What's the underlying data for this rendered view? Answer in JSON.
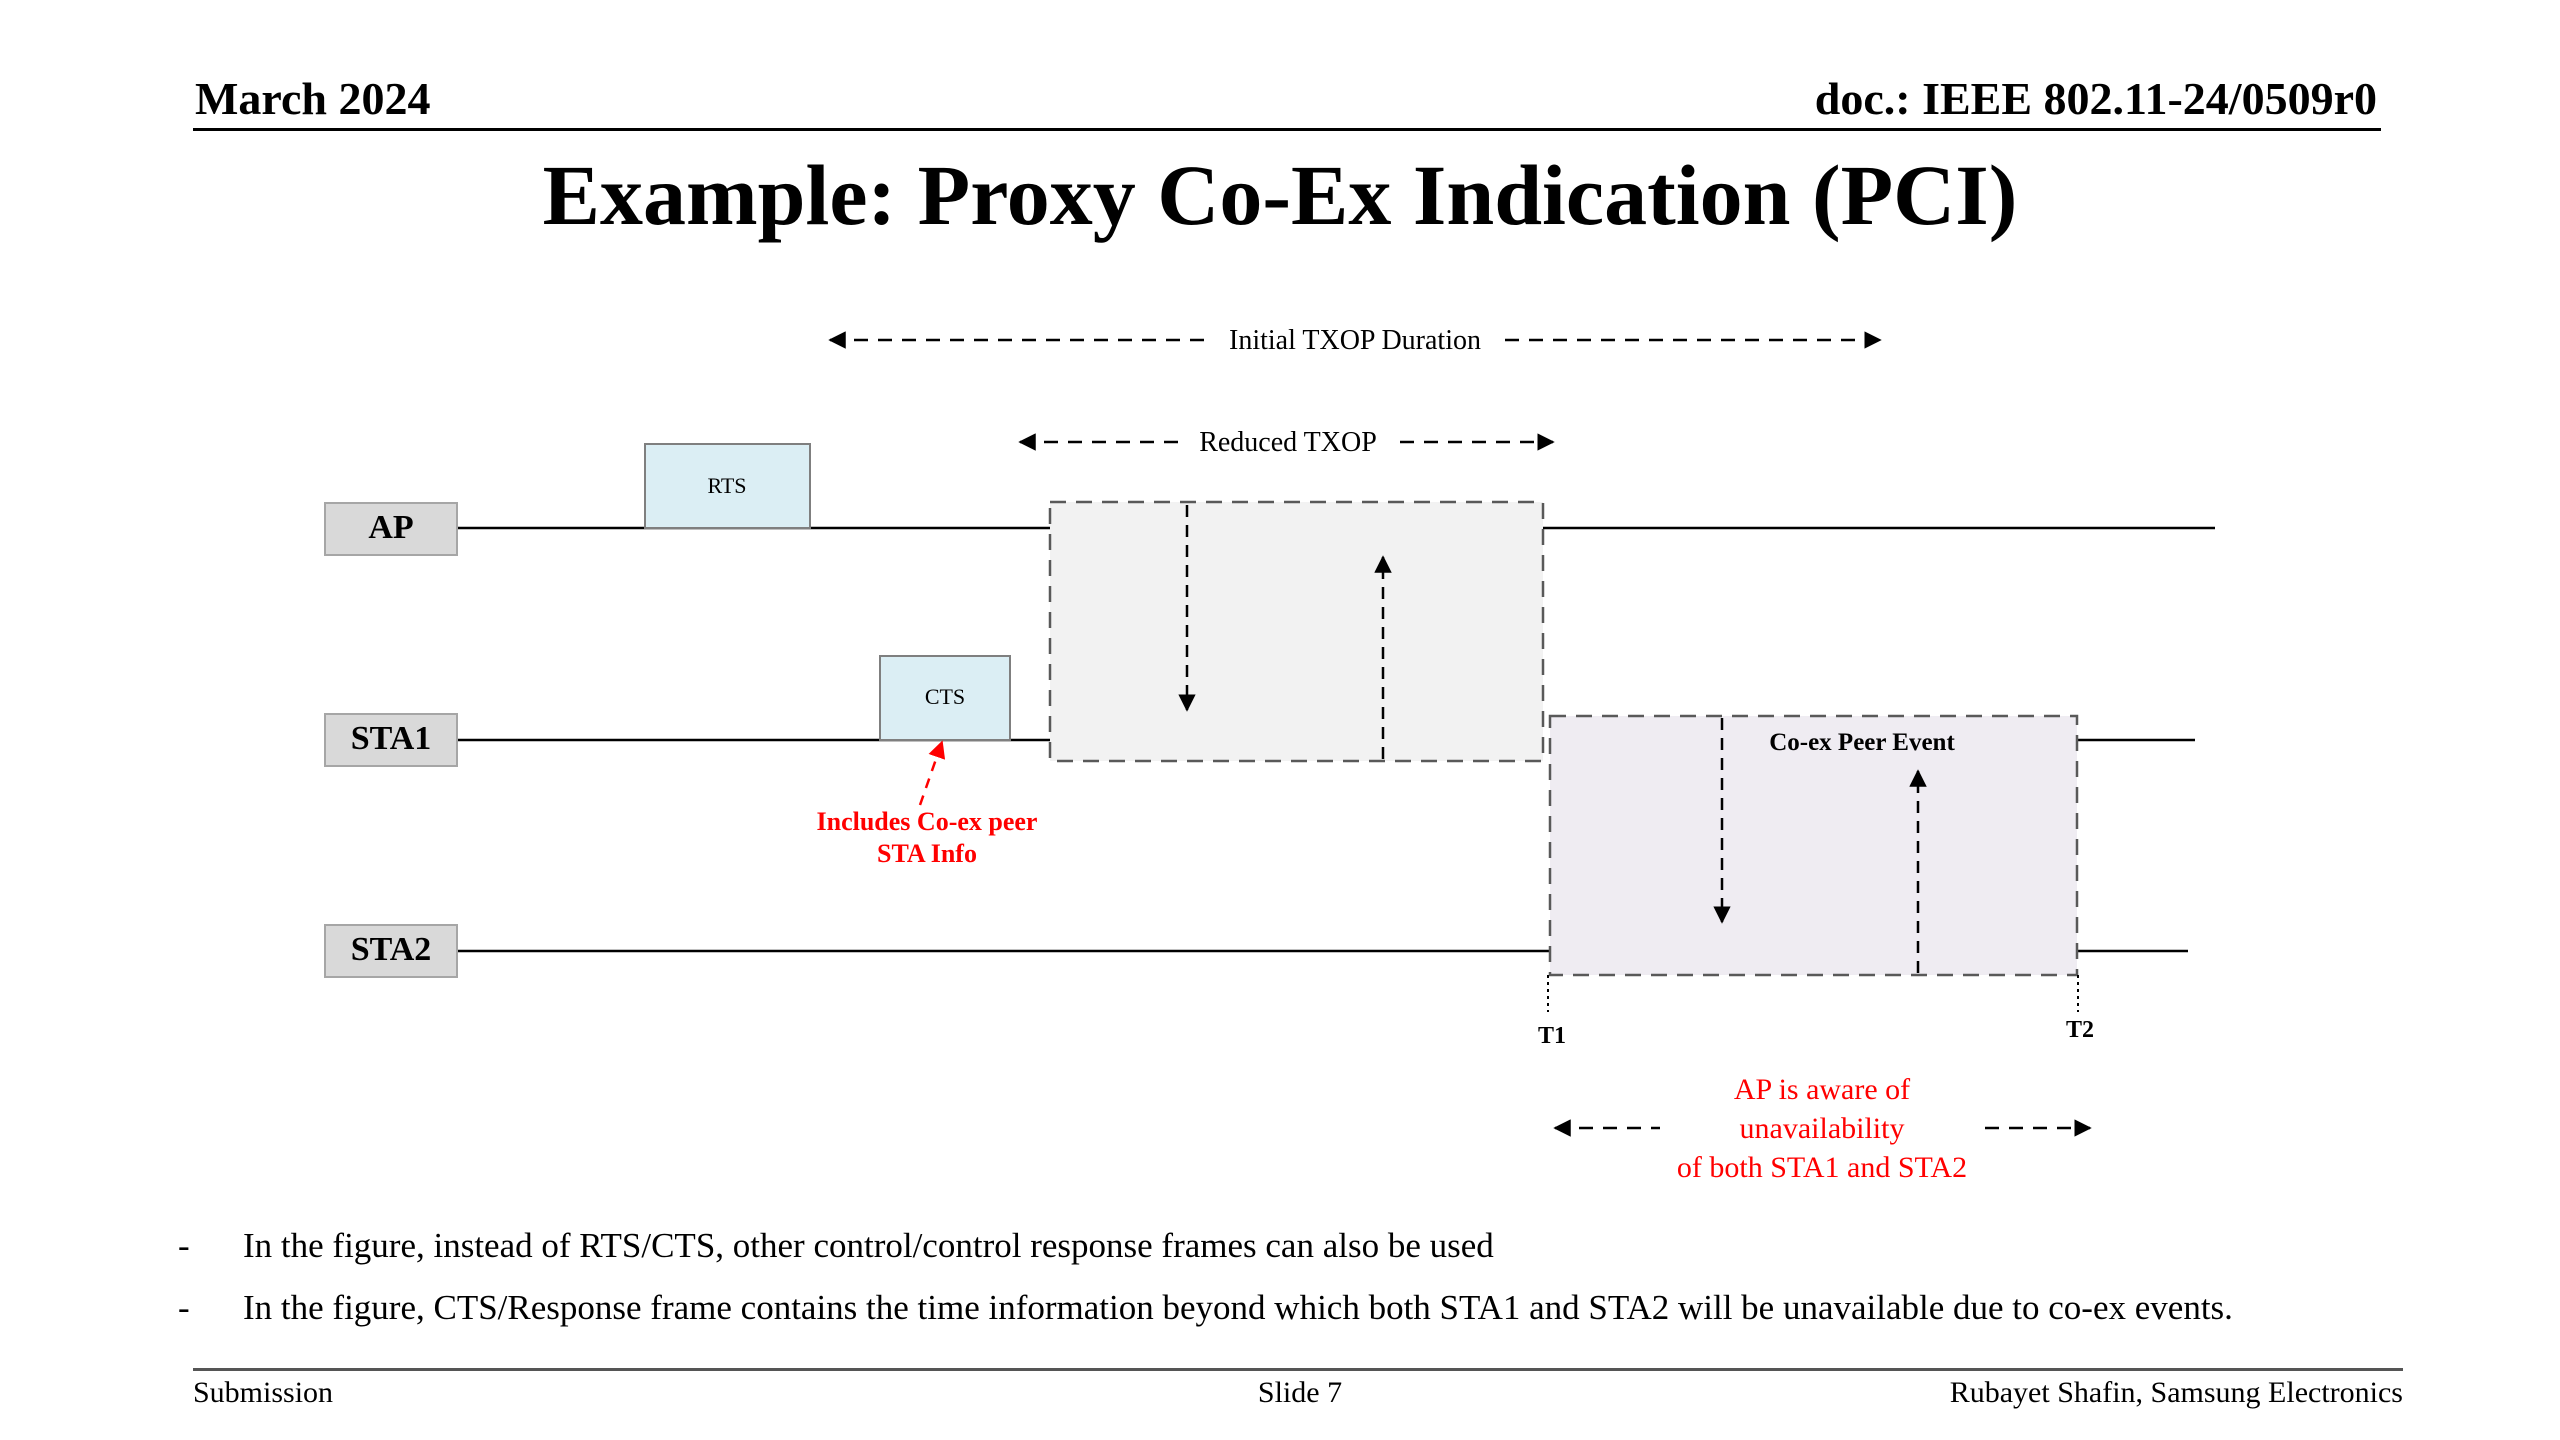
{
  "header": {
    "date": "March 2024",
    "doc": "doc.: IEEE 802.11-24/0509r0"
  },
  "title": "Example: Proxy Co-Ex Indication (PCI)",
  "diagram": {
    "stations": {
      "ap": "AP",
      "sta1": "STA1",
      "sta2": "STA2"
    },
    "frames": {
      "rts": "RTS",
      "cts": "CTS"
    },
    "durations": {
      "initial_txop": "Initial TXOP Duration",
      "reduced_txop": "Reduced TXOP"
    },
    "event_label": "Co-ex Peer Event",
    "markers": {
      "t1": "T1",
      "t2": "T2"
    },
    "colors": {
      "annotation": "#ff0000",
      "frame_fill": "#dbeef4",
      "station_fill": "#d9d9d9"
    },
    "annotation_cts": [
      "Includes Co-ex peer",
      "STA Info"
    ],
    "annotation_ap": [
      "AP is aware of",
      "unavailability",
      "of both STA1 and STA2"
    ]
  },
  "bullets": [
    "In the figure, instead of RTS/CTS, other control/control response frames can also be used",
    "In the figure, CTS/Response frame contains the time information beyond which both STA1 and STA2 will be unavailable due to co-ex events."
  ],
  "footer": {
    "left": "Submission",
    "center": "Slide 7",
    "right": "Rubayet Shafin, Samsung Electronics"
  }
}
